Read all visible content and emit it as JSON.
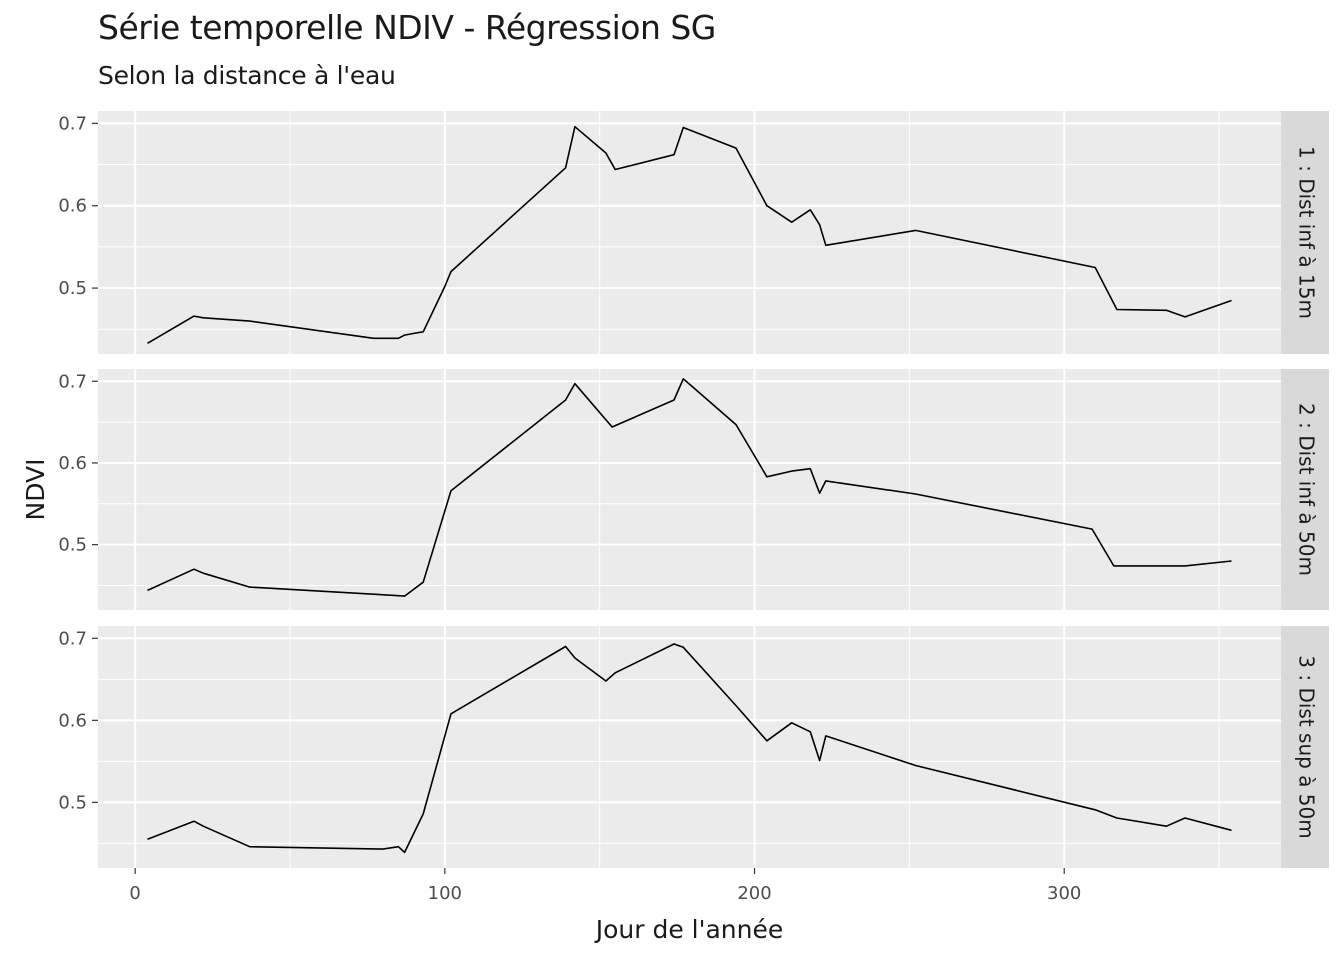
{
  "chart_data": {
    "type": "line",
    "title": "Série temporelle NDIV - Régression SG",
    "subtitle": "Selon la distance à l'eau",
    "xlabel": "Jour de l'année",
    "ylabel": "NDVI",
    "xlim": [
      -12,
      370
    ],
    "ylim": [
      0.42,
      0.715
    ],
    "x_ticks": [
      0,
      100,
      200,
      300
    ],
    "y_ticks": [
      0.5,
      0.6,
      0.7
    ],
    "y_tick_labels": [
      "0.5",
      "0.6",
      "0.7"
    ],
    "grid": true,
    "facets": [
      {
        "label": "1 : Dist inf à 15m",
        "x": [
          4,
          19,
          22,
          37,
          77,
          85,
          87,
          90,
          93,
          100,
          102,
          139,
          142,
          152,
          155,
          174,
          177,
          194,
          204,
          212,
          218,
          221,
          223,
          252,
          310,
          317,
          333,
          339,
          354
        ],
        "y": [
          0.433,
          0.466,
          0.464,
          0.46,
          0.439,
          0.439,
          0.443,
          0.445,
          0.447,
          0.502,
          0.52,
          0.646,
          0.696,
          0.664,
          0.644,
          0.662,
          0.695,
          0.67,
          0.6,
          0.58,
          0.595,
          0.577,
          0.552,
          0.57,
          0.525,
          0.474,
          0.473,
          0.465,
          0.485
        ]
      },
      {
        "label": "2 : Dist inf à 50m",
        "x": [
          4,
          19,
          22,
          37,
          83,
          87,
          93,
          102,
          139,
          142,
          154,
          174,
          177,
          194,
          204,
          212,
          218,
          221,
          223,
          252,
          309,
          316,
          339,
          354
        ],
        "y": [
          0.444,
          0.47,
          0.465,
          0.448,
          0.438,
          0.437,
          0.454,
          0.566,
          0.677,
          0.697,
          0.644,
          0.677,
          0.703,
          0.647,
          0.583,
          0.59,
          0.593,
          0.563,
          0.578,
          0.562,
          0.519,
          0.474,
          0.474,
          0.48
        ]
      },
      {
        "label": "3 : Dist sup à 50m",
        "x": [
          4,
          19,
          22,
          37,
          80,
          85,
          87,
          93,
          102,
          139,
          142,
          152,
          155,
          174,
          177,
          194,
          204,
          212,
          218,
          221,
          223,
          252,
          310,
          317,
          333,
          339,
          354
        ],
        "y": [
          0.455,
          0.477,
          0.471,
          0.446,
          0.443,
          0.446,
          0.439,
          0.486,
          0.608,
          0.69,
          0.676,
          0.648,
          0.658,
          0.693,
          0.689,
          0.618,
          0.575,
          0.597,
          0.586,
          0.551,
          0.581,
          0.545,
          0.491,
          0.481,
          0.471,
          0.481,
          0.466
        ]
      }
    ]
  }
}
